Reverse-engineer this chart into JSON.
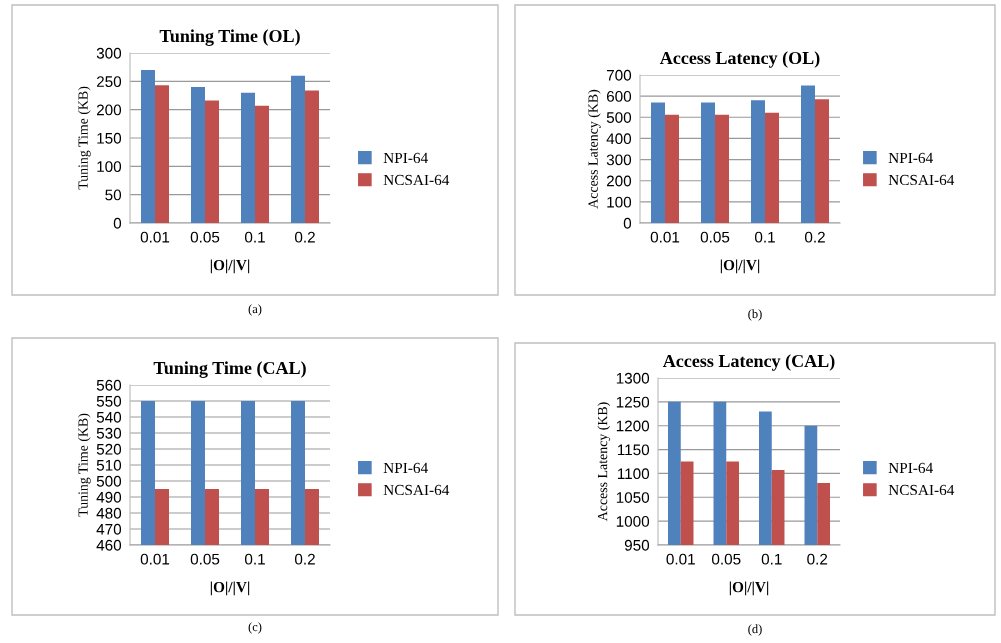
{
  "chart_data": [
    {
      "type": "bar",
      "title": "Tuning Time (OL)",
      "xlabel": "|O|/|V|",
      "ylabel": "Tuning Time (KB)",
      "categories": [
        "0.01",
        "0.05",
        "0.1",
        "0.2"
      ],
      "series": [
        {
          "name": "NPI-64",
          "color": "#4f81bd",
          "values": [
            270,
            240,
            230,
            260
          ]
        },
        {
          "name": "NCSAI-64",
          "color": "#c0504d",
          "values": [
            243,
            216,
            207,
            234
          ]
        }
      ],
      "ylim": [
        0,
        300
      ],
      "yticks": [
        0,
        50,
        100,
        150,
        200,
        250,
        300
      ],
      "grid": "y",
      "legend": "right",
      "annotations": [
        "(a)"
      ]
    },
    {
      "type": "bar",
      "title": "Access Latency (OL)",
      "xlabel": "|O|/|V|",
      "ylabel": "Access Latency (KB)",
      "categories": [
        "0.01",
        "0.05",
        "0.1",
        "0.2"
      ],
      "series": [
        {
          "name": "NPI-64",
          "color": "#4f81bd",
          "values": [
            570,
            570,
            580,
            650
          ]
        },
        {
          "name": "NCSAI-64",
          "color": "#c0504d",
          "values": [
            512,
            512,
            522,
            585
          ]
        }
      ],
      "ylim": [
        0,
        700
      ],
      "yticks": [
        0,
        100,
        200,
        300,
        400,
        500,
        600,
        700
      ],
      "grid": "y",
      "legend": "right",
      "annotations": [
        "(b)"
      ]
    },
    {
      "type": "bar",
      "title": "Tuning Time (CAL)",
      "xlabel": "|O|/|V|",
      "ylabel": "Tuning Time (KB)",
      "categories": [
        "0.01",
        "0.05",
        "0.1",
        "0.2"
      ],
      "series": [
        {
          "name": "NPI-64",
          "color": "#4f81bd",
          "values": [
            550,
            550,
            550,
            550
          ]
        },
        {
          "name": "NCSAI-64",
          "color": "#c0504d",
          "values": [
            495,
            495,
            495,
            495
          ]
        }
      ],
      "ylim": [
        460,
        560
      ],
      "yticks": [
        460,
        470,
        480,
        490,
        500,
        510,
        520,
        530,
        540,
        550,
        560
      ],
      "grid": "y",
      "legend": "right",
      "annotations": [
        "(c)"
      ]
    },
    {
      "type": "bar",
      "title": "Access Latency (CAL)",
      "xlabel": "|O|/|V|",
      "ylabel": "Access Latency (KB)",
      "categories": [
        "0.01",
        "0.05",
        "0.1",
        "0.2"
      ],
      "series": [
        {
          "name": "NPI-64",
          "color": "#4f81bd",
          "values": [
            1250,
            1250,
            1230,
            1200
          ]
        },
        {
          "name": "NCSAI-64",
          "color": "#c0504d",
          "values": [
            1125,
            1125,
            1107,
            1080
          ]
        }
      ],
      "ylim": [
        950,
        1300
      ],
      "yticks": [
        950,
        1000,
        1050,
        1100,
        1150,
        1200,
        1250,
        1300
      ],
      "grid": "y",
      "legend": "right",
      "annotations": [
        "(d)"
      ]
    }
  ]
}
